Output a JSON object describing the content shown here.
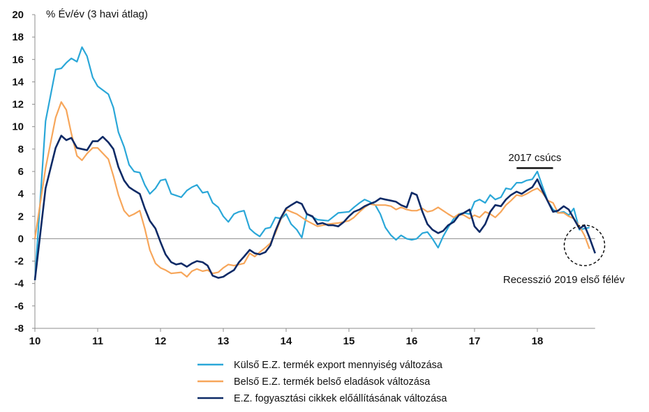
{
  "chart_data": {
    "type": "line",
    "ylabel": "% Év/év (3 havi átlag)",
    "ylim": [
      -8,
      20
    ],
    "yticks": [
      -8,
      -6,
      -4,
      -2,
      0,
      2,
      4,
      6,
      8,
      10,
      12,
      14,
      16,
      18,
      20
    ],
    "xlim": [
      10,
      18.92
    ],
    "xticks": [
      10,
      11,
      12,
      13,
      14,
      15,
      16,
      17,
      18
    ],
    "grid": false,
    "legend": "bottom",
    "annotations": [
      {
        "text": "2017 csúcs",
        "x_start": 17.67,
        "x_end": 18.25,
        "y": 6.3
      },
      {
        "text": "Recesszió 2019 első félév",
        "x": 18.75,
        "y": -0.6
      }
    ],
    "series": [
      {
        "name": "Külső E.Z. termék export mennyiség változása",
        "color": "#2aa7d8",
        "x": [
          10.0,
          10.17,
          10.33,
          10.42,
          10.5,
          10.58,
          10.67,
          10.75,
          10.83,
          10.92,
          11.0,
          11.17,
          11.25,
          11.33,
          11.42,
          11.5,
          11.58,
          11.67,
          11.75,
          11.83,
          11.92,
          12.0,
          12.08,
          12.17,
          12.33,
          12.42,
          12.5,
          12.58,
          12.67,
          12.75,
          12.83,
          12.92,
          13.0,
          13.08,
          13.17,
          13.25,
          13.33,
          13.42,
          13.5,
          13.58,
          13.67,
          13.75,
          13.83,
          13.92,
          14.0,
          14.08,
          14.17,
          14.25,
          14.33,
          14.5,
          14.67,
          14.83,
          15.0,
          15.08,
          15.17,
          15.25,
          15.33,
          15.42,
          15.5,
          15.58,
          15.67,
          15.75,
          15.83,
          15.92,
          16.0,
          16.08,
          16.17,
          16.25,
          16.33,
          16.42,
          16.5,
          16.58,
          16.67,
          16.75,
          16.83,
          16.92,
          17.0,
          17.08,
          17.17,
          17.25,
          17.33,
          17.42,
          17.5,
          17.58,
          17.67,
          17.75,
          17.83,
          17.92,
          18.0,
          18.08,
          18.17,
          18.25,
          18.33,
          18.42,
          18.5,
          18.58,
          18.67,
          18.75,
          18.83
        ],
        "values": [
          -3.7,
          10.5,
          15.1,
          15.2,
          15.7,
          16.1,
          15.8,
          17.1,
          16.3,
          14.4,
          13.6,
          12.9,
          11.7,
          9.5,
          8.2,
          6.6,
          6.0,
          5.9,
          4.8,
          4.0,
          4.5,
          5.2,
          5.3,
          4.0,
          3.7,
          4.3,
          4.6,
          4.8,
          4.1,
          4.2,
          3.2,
          2.8,
          2.0,
          1.5,
          2.2,
          2.4,
          2.5,
          0.9,
          0.5,
          0.2,
          0.9,
          1.0,
          1.9,
          1.8,
          2.2,
          1.3,
          0.8,
          0.1,
          2.2,
          1.7,
          1.6,
          2.3,
          2.4,
          2.8,
          3.2,
          3.5,
          3.3,
          3.0,
          2.2,
          1.0,
          0.3,
          -0.1,
          0.3,
          0.0,
          -0.1,
          0.0,
          0.5,
          0.6,
          0.0,
          -0.8,
          0.2,
          1.0,
          1.8,
          2.2,
          2.3,
          2.2,
          3.3,
          3.5,
          3.2,
          3.9,
          3.5,
          3.7,
          4.5,
          4.4,
          5.0,
          5.0,
          5.2,
          5.3,
          6.0,
          4.7,
          3.3,
          2.6,
          2.3,
          2.4,
          2.1,
          2.7,
          0.8,
          0.9,
          1.0
        ]
      },
      {
        "name": "Belső E.Z. termék belső eladások változása",
        "color": "#f7a65a",
        "x": [
          10.0,
          10.17,
          10.33,
          10.42,
          10.5,
          10.58,
          10.67,
          10.75,
          10.83,
          10.92,
          11.0,
          11.17,
          11.25,
          11.33,
          11.42,
          11.5,
          11.58,
          11.67,
          11.75,
          11.83,
          11.92,
          12.0,
          12.08,
          12.17,
          12.33,
          12.42,
          12.5,
          12.58,
          12.67,
          12.75,
          12.83,
          12.92,
          13.0,
          13.08,
          13.17,
          13.25,
          13.33,
          13.42,
          13.5,
          13.58,
          13.67,
          13.75,
          13.83,
          13.92,
          14.0,
          14.08,
          14.17,
          14.25,
          14.33,
          14.5,
          14.67,
          14.83,
          15.0,
          15.08,
          15.17,
          15.25,
          15.33,
          15.42,
          15.5,
          15.58,
          15.67,
          15.75,
          15.83,
          15.92,
          16.0,
          16.08,
          16.17,
          16.25,
          16.33,
          16.42,
          16.5,
          16.58,
          16.67,
          16.75,
          16.83,
          16.92,
          17.0,
          17.08,
          17.17,
          17.25,
          17.33,
          17.42,
          17.5,
          17.58,
          17.67,
          17.75,
          17.83,
          17.92,
          18.0,
          18.08,
          18.17,
          18.25,
          18.33,
          18.42,
          18.5,
          18.58,
          18.67,
          18.75,
          18.83
        ],
        "values": [
          0.0,
          6.3,
          10.8,
          12.2,
          11.5,
          9.4,
          7.4,
          7.0,
          7.6,
          8.1,
          8.1,
          7.1,
          5.6,
          3.9,
          2.5,
          2.0,
          2.2,
          2.5,
          0.9,
          -1.0,
          -2.2,
          -2.6,
          -2.8,
          -3.1,
          -3.0,
          -3.4,
          -2.9,
          -2.7,
          -2.9,
          -2.8,
          -3.1,
          -3.0,
          -2.6,
          -2.3,
          -2.4,
          -2.3,
          -2.2,
          -1.3,
          -1.6,
          -1.2,
          -0.8,
          -0.4,
          0.5,
          1.8,
          2.6,
          2.4,
          2.2,
          1.9,
          1.6,
          1.1,
          1.3,
          1.4,
          1.6,
          1.9,
          2.4,
          2.8,
          3.1,
          3.0,
          3.0,
          3.0,
          2.9,
          2.6,
          2.8,
          2.6,
          2.5,
          2.5,
          2.7,
          2.4,
          2.5,
          2.8,
          2.5,
          2.2,
          1.9,
          2.2,
          2.1,
          1.8,
          2.1,
          1.9,
          2.4,
          2.2,
          1.9,
          2.4,
          3.0,
          3.4,
          3.9,
          3.8,
          4.0,
          4.3,
          4.5,
          4.1,
          3.4,
          3.2,
          2.3,
          2.3,
          2.0,
          1.8,
          1.1,
          0.3,
          -0.9
        ]
      },
      {
        "name": "E.Z. fogyasztási cikkek előállításának változása",
        "color": "#0d2a66",
        "x": [
          10.0,
          10.17,
          10.33,
          10.42,
          10.5,
          10.58,
          10.67,
          10.75,
          10.83,
          10.92,
          11.0,
          11.08,
          11.17,
          11.25,
          11.33,
          11.42,
          11.5,
          11.58,
          11.67,
          11.75,
          11.83,
          11.92,
          12.0,
          12.08,
          12.17,
          12.25,
          12.33,
          12.42,
          12.5,
          12.58,
          12.67,
          12.75,
          12.83,
          12.92,
          13.0,
          13.08,
          13.17,
          13.25,
          13.33,
          13.42,
          13.5,
          13.58,
          13.67,
          13.75,
          13.83,
          13.92,
          14.0,
          14.08,
          14.17,
          14.25,
          14.33,
          14.42,
          14.5,
          14.58,
          14.67,
          14.75,
          14.83,
          14.92,
          15.0,
          15.08,
          15.17,
          15.25,
          15.33,
          15.42,
          15.5,
          15.58,
          15.67,
          15.75,
          15.83,
          15.92,
          16.0,
          16.08,
          16.17,
          16.25,
          16.33,
          16.42,
          16.5,
          16.58,
          16.67,
          16.75,
          16.83,
          16.92,
          17.0,
          17.08,
          17.17,
          17.25,
          17.33,
          17.42,
          17.5,
          17.58,
          17.67,
          17.75,
          17.83,
          17.92,
          18.0,
          18.08,
          18.17,
          18.25,
          18.33,
          18.42,
          18.5,
          18.58,
          18.67,
          18.75,
          18.83,
          18.92
        ],
        "values": [
          -3.7,
          4.5,
          8.1,
          9.2,
          8.8,
          9.0,
          8.1,
          8.0,
          7.9,
          8.7,
          8.7,
          9.1,
          8.6,
          8.0,
          6.4,
          5.2,
          4.6,
          4.3,
          4.0,
          2.7,
          1.6,
          0.9,
          -0.3,
          -1.4,
          -2.1,
          -2.3,
          -2.2,
          -2.5,
          -2.2,
          -2.0,
          -2.1,
          -2.4,
          -3.3,
          -3.5,
          -3.4,
          -3.1,
          -2.8,
          -2.1,
          -1.6,
          -1.0,
          -1.3,
          -1.4,
          -1.2,
          -0.6,
          0.7,
          1.9,
          2.7,
          3.0,
          3.3,
          3.1,
          2.2,
          2.0,
          1.3,
          1.4,
          1.2,
          1.2,
          1.1,
          1.5,
          2.0,
          2.4,
          2.6,
          2.9,
          3.1,
          3.3,
          3.6,
          3.5,
          3.4,
          3.3,
          3.0,
          2.8,
          4.1,
          3.9,
          2.4,
          1.3,
          0.8,
          0.5,
          0.7,
          1.2,
          1.5,
          2.1,
          2.3,
          2.6,
          1.1,
          0.6,
          1.3,
          2.4,
          3.0,
          2.9,
          3.5,
          3.9,
          4.2,
          4.0,
          4.3,
          4.6,
          5.3,
          4.3,
          3.3,
          2.4,
          2.5,
          2.9,
          2.6,
          1.8,
          0.9,
          1.2,
          0.1,
          -1.3
        ]
      }
    ]
  }
}
